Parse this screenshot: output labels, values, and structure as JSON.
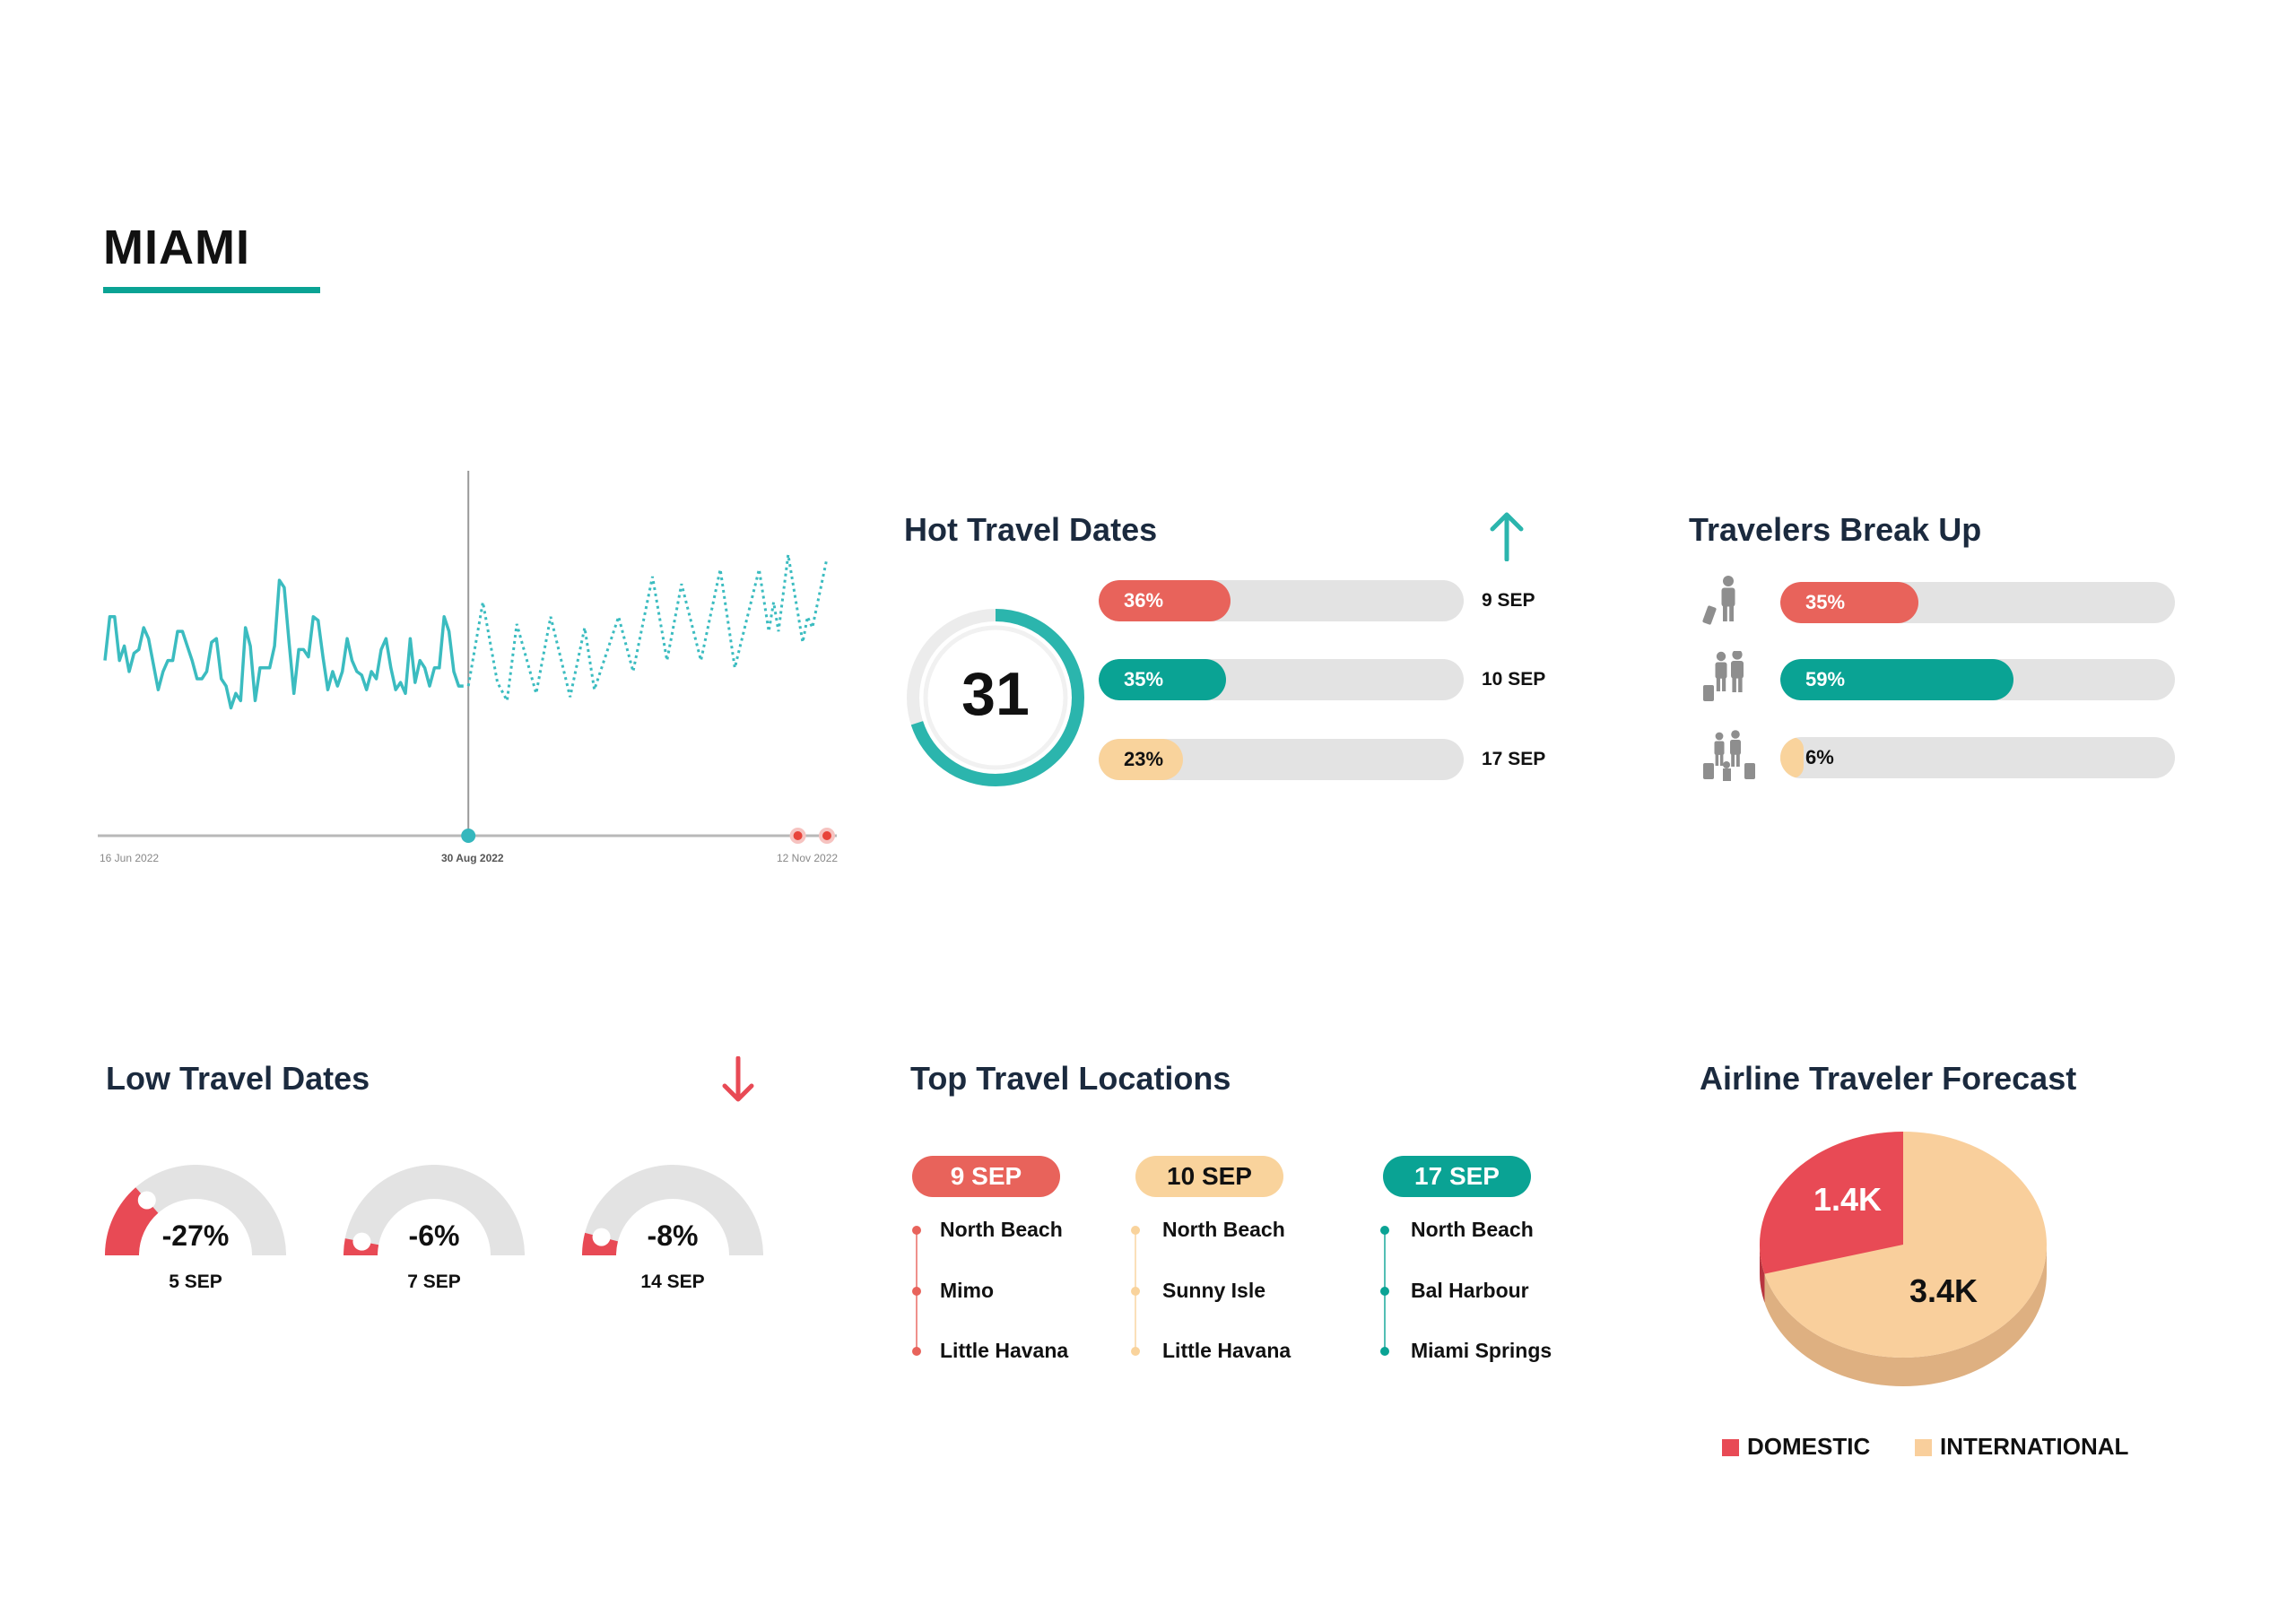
{
  "header": {
    "title": "MIAMI"
  },
  "colors": {
    "teal": "#0aa394",
    "line": "#3bbcc0",
    "red": "#e8635b",
    "deep_red": "#e84a55",
    "peach": "#f9d39c",
    "track": "#e3e3e3",
    "navy": "#1b2a3e"
  },
  "trend_chart": {
    "x_ticks": [
      "16 Jun 2022",
      "30 Aug 2022",
      "12 Nov 2022"
    ],
    "highlight_date": "30 Aug 2022"
  },
  "hot_travel": {
    "title": "Hot Travel Dates",
    "icon": "arrow-up-icon",
    "ring_value": "31",
    "ring_fill": 0.7,
    "bars": [
      {
        "label": "36%",
        "value": 36,
        "date": "9 SEP",
        "color": "#e8635b",
        "text_color": "#ffffff"
      },
      {
        "label": "35%",
        "value": 35,
        "date": "10 SEP",
        "color": "#0aa394",
        "text_color": "#ffffff"
      },
      {
        "label": "23%",
        "value": 23,
        "date": "17 SEP",
        "color": "#f9d39c",
        "text_color": "#111111"
      }
    ]
  },
  "travelers": {
    "title": "Travelers Break Up",
    "rows": [
      {
        "icon": "solo-traveler-icon",
        "label": "35%",
        "value": 35,
        "color": "#e8635b",
        "text_color": "#ffffff"
      },
      {
        "icon": "couple-travelers-icon",
        "label": "59%",
        "value": 59,
        "color": "#0aa394",
        "text_color": "#ffffff"
      },
      {
        "icon": "family-travelers-icon",
        "label": "6%",
        "value": 6,
        "color": "#f9d39c",
        "text_color": "#111111"
      }
    ]
  },
  "low_travel": {
    "title": "Low Travel Dates",
    "icon": "arrow-down-icon",
    "gauges": [
      {
        "label": "-27%",
        "value": -27,
        "date": "5 SEP"
      },
      {
        "label": "-6%",
        "value": -6,
        "date": "7 SEP"
      },
      {
        "label": "-8%",
        "value": -8,
        "date": "14 SEP"
      }
    ]
  },
  "top_locations": {
    "title": "Top Travel Locations",
    "columns": [
      {
        "date": "9 SEP",
        "color": "#e8635b",
        "text_color": "#ffffff",
        "places": [
          "North Beach",
          "Mimo",
          "Little Havana"
        ]
      },
      {
        "date": "10 SEP",
        "color": "#f9d39c",
        "text_color": "#111111",
        "places": [
          "North Beach",
          "Sunny Isle",
          "Little Havana"
        ]
      },
      {
        "date": "17 SEP",
        "color": "#0aa394",
        "text_color": "#ffffff",
        "places": [
          "North Beach",
          "Bal Harbour",
          "Miami Springs"
        ]
      }
    ]
  },
  "chart_data": [
    {
      "type": "line",
      "x_ticks": [
        "16 Jun 2022",
        "30 Aug 2022",
        "12 Nov 2022"
      ],
      "xlim": [
        "2022-06-16",
        "2022-11-12"
      ],
      "ylim": [
        0,
        100
      ],
      "grid": false,
      "actual": {
        "start": "2022-06-16",
        "values": [
          48,
          60,
          60,
          48,
          52,
          45,
          50,
          51,
          57,
          54,
          47,
          40,
          45,
          48,
          48,
          56,
          56,
          52,
          48,
          43,
          43,
          45,
          53,
          54,
          43,
          41,
          35,
          39,
          37,
          57,
          52,
          37,
          46,
          46,
          46,
          52,
          70,
          68,
          53,
          39,
          51,
          51,
          49,
          60,
          59,
          49,
          40,
          45,
          41,
          45,
          54,
          48,
          45,
          44,
          40,
          45,
          43,
          51,
          54,
          46,
          40,
          42,
          39,
          54,
          42,
          48,
          46,
          41,
          46,
          46,
          60,
          56,
          45,
          41,
          41
        ]
      },
      "forecast": [
        [
          "2022-08-30",
          41
        ],
        [
          "2022-09-02",
          64
        ],
        [
          "2022-09-05",
          42
        ],
        [
          "2022-09-07",
          37
        ],
        [
          "2022-09-09",
          58
        ],
        [
          "2022-09-13",
          39
        ],
        [
          "2022-09-16",
          60
        ],
        [
          "2022-09-20",
          38
        ],
        [
          "2022-09-23",
          57
        ],
        [
          "2022-09-25",
          40
        ],
        [
          "2022-09-30",
          60
        ],
        [
          "2022-10-03",
          45
        ],
        [
          "2022-10-07",
          71
        ],
        [
          "2022-10-10",
          48
        ],
        [
          "2022-10-13",
          69
        ],
        [
          "2022-10-17",
          48
        ],
        [
          "2022-10-21",
          73
        ],
        [
          "2022-10-24",
          46
        ],
        [
          "2022-10-29",
          73
        ],
        [
          "2022-10-31",
          56
        ],
        [
          "2022-11-01",
          64
        ],
        [
          "2022-11-02",
          56
        ],
        [
          "2022-11-04",
          77
        ],
        [
          "2022-11-07",
          53
        ],
        [
          "2022-11-08",
          60
        ],
        [
          "2022-11-09",
          57
        ],
        [
          "2022-11-12",
          76
        ]
      ],
      "markers": {
        "highlight": "2022-08-30",
        "alerts": [
          "2022-11-06",
          "2022-11-12"
        ]
      }
    },
    {
      "type": "pie",
      "title": "Airline Traveler Forecast",
      "slices": [
        {
          "name": "DOMESTIC",
          "value": 1.4,
          "label": "1.4K",
          "color": "#e84a55"
        },
        {
          "name": "INTERNATIONAL",
          "value": 3.4,
          "label": "3.4K",
          "color": "#f9cf9c"
        }
      ],
      "legend": "bottom"
    }
  ]
}
